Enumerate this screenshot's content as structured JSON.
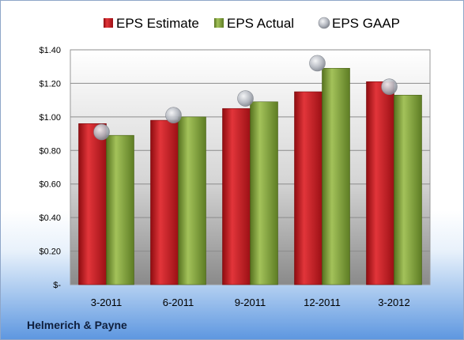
{
  "company": "Helmerich & Payne",
  "chart_data": {
    "type": "bar",
    "categories": [
      "3-2011",
      "6-2011",
      "9-2011",
      "12-2011",
      "3-2012"
    ],
    "series": [
      {
        "name": "EPS Estimate",
        "type": "bar",
        "color": "#c0161c",
        "values": [
          0.96,
          0.98,
          1.05,
          1.15,
          1.21
        ]
      },
      {
        "name": "EPS Actual",
        "type": "bar",
        "color": "#7a9a32",
        "values": [
          0.89,
          1.0,
          1.09,
          1.29,
          1.13
        ]
      },
      {
        "name": "EPS GAAP",
        "type": "scatter",
        "color": "#b8bcc4",
        "values": [
          0.91,
          1.01,
          1.11,
          1.32,
          1.18
        ]
      }
    ],
    "ylim": [
      0,
      1.4
    ],
    "yticks": [
      0,
      0.2,
      0.4,
      0.6,
      0.8,
      1.0,
      1.2,
      1.4
    ],
    "ytick_labels": [
      "$-",
      "$0.20",
      "$0.40",
      "$0.60",
      "$0.80",
      "$1.00",
      "$1.20",
      "$1.40"
    ],
    "legend_position": "top",
    "grid": true
  }
}
